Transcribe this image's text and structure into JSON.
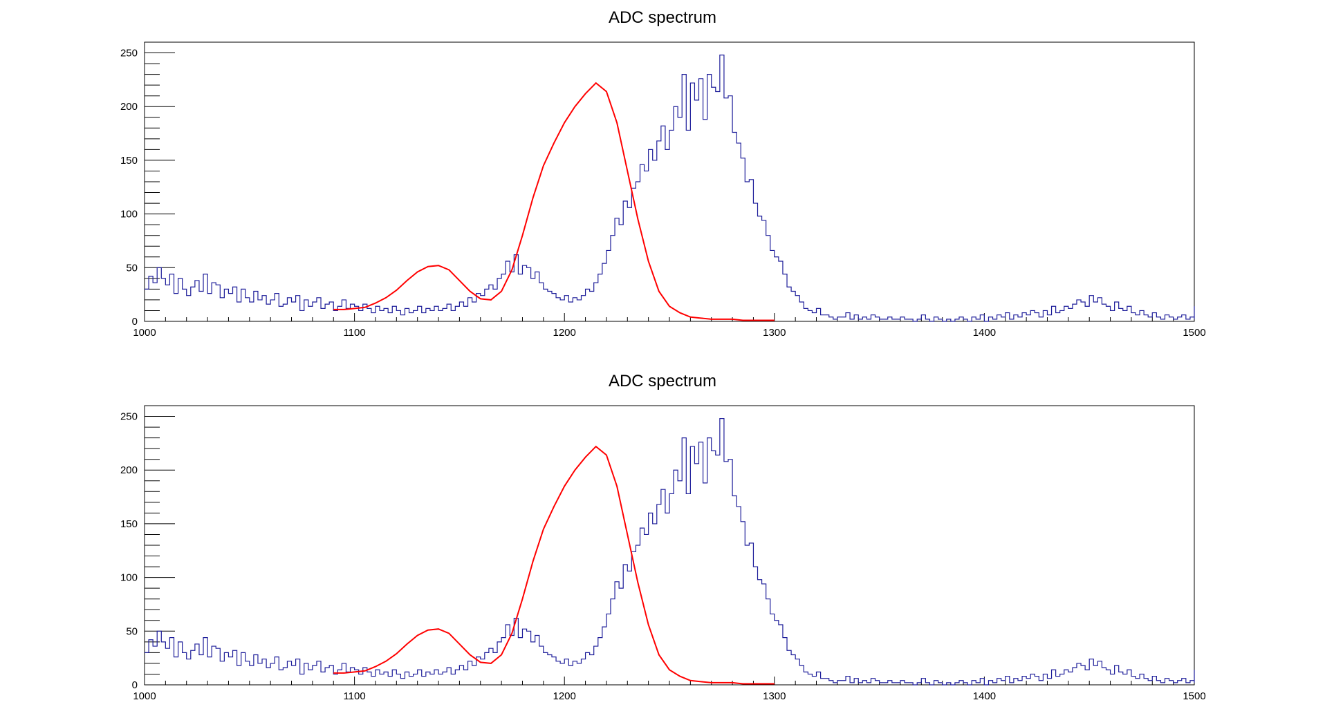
{
  "chart_data": [
    {
      "type": "histogram",
      "title": "ADC spectrum",
      "xlabel": "",
      "ylabel": "",
      "xlim": [
        1000,
        1500
      ],
      "ylim": [
        0,
        260
      ],
      "x_ticks": [
        1000,
        1100,
        1200,
        1300,
        1400,
        1500
      ],
      "y_ticks": [
        0,
        50,
        100,
        150,
        200,
        250
      ],
      "grid": false,
      "colors": {
        "histogram": "#1c1c99",
        "fit": "#ff0000",
        "frame": "#000000"
      },
      "histogram": {
        "bin_start": 1000,
        "bin_width": 2,
        "counts": [
          30,
          42,
          36,
          50,
          40,
          34,
          44,
          26,
          40,
          30,
          24,
          32,
          38,
          28,
          44,
          26,
          36,
          34,
          22,
          30,
          26,
          32,
          18,
          30,
          22,
          18,
          28,
          20,
          24,
          16,
          20,
          26,
          14,
          16,
          22,
          18,
          24,
          10,
          20,
          14,
          18,
          22,
          12,
          16,
          18,
          10,
          14,
          20,
          12,
          16,
          14,
          10,
          16,
          12,
          8,
          14,
          10,
          12,
          8,
          14,
          10,
          6,
          12,
          8,
          10,
          14,
          8,
          12,
          10,
          14,
          10,
          12,
          16,
          10,
          14,
          18,
          14,
          22,
          18,
          26,
          24,
          30,
          34,
          30,
          40,
          44,
          56,
          46,
          62,
          44,
          52,
          50,
          40,
          46,
          36,
          30,
          28,
          26,
          22,
          20,
          24,
          18,
          22,
          20,
          24,
          30,
          28,
          36,
          44,
          54,
          66,
          80,
          96,
          90,
          112,
          106,
          124,
          130,
          146,
          140,
          160,
          150,
          168,
          182,
          160,
          178,
          200,
          190,
          230,
          178,
          222,
          206,
          226,
          188,
          230,
          218,
          214,
          248,
          208,
          210,
          176,
          166,
          152,
          130,
          132,
          110,
          98,
          94,
          80,
          66,
          60,
          56,
          44,
          32,
          28,
          24,
          18,
          12,
          10,
          8,
          12,
          6,
          6,
          4,
          2,
          4,
          4,
          8,
          2,
          6,
          2,
          4,
          2,
          6,
          4,
          2,
          2,
          4,
          2,
          2,
          4,
          2,
          2,
          0,
          2,
          6,
          2,
          0,
          4,
          2,
          0,
          2,
          0,
          2,
          4,
          2,
          0,
          4,
          2,
          6,
          0,
          4,
          2,
          6,
          4,
          8,
          2,
          6,
          4,
          8,
          6,
          10,
          8,
          4,
          10,
          6,
          14,
          8,
          10,
          14,
          12,
          16,
          20,
          18,
          14,
          24,
          18,
          22,
          16,
          14,
          10,
          18,
          12,
          10,
          14,
          8,
          6,
          10,
          6,
          4,
          8,
          4,
          2,
          6,
          4,
          2,
          4,
          6,
          2,
          4,
          2,
          6,
          4,
          2,
          4,
          6,
          4,
          2,
          6,
          4,
          8,
          2,
          6,
          4,
          8,
          6,
          4,
          8,
          6,
          10,
          8,
          6,
          10,
          8,
          12,
          6,
          10,
          8,
          14,
          6,
          12,
          10,
          8,
          12,
          6,
          10,
          4,
          8,
          6,
          8,
          4,
          6,
          2,
          8
        ]
      },
      "fit": {
        "x": [
          1090,
          1095,
          1100,
          1105,
          1110,
          1115,
          1120,
          1125,
          1130,
          1135,
          1140,
          1145,
          1150,
          1155,
          1160,
          1165,
          1170,
          1175,
          1180,
          1185,
          1190,
          1195,
          1200,
          1205,
          1210,
          1215,
          1220,
          1225,
          1230,
          1235,
          1240,
          1245,
          1250,
          1255,
          1260,
          1265,
          1270,
          1275,
          1280,
          1285,
          1290,
          1295,
          1300
        ],
        "y": [
          11,
          11,
          12,
          13,
          17,
          22,
          29,
          38,
          46,
          51,
          52,
          48,
          38,
          28,
          21,
          20,
          28,
          48,
          80,
          115,
          145,
          166,
          185,
          200,
          212,
          222,
          214,
          185,
          140,
          95,
          56,
          28,
          14,
          8,
          4,
          3,
          2,
          2,
          2,
          1,
          1,
          1,
          1
        ]
      }
    },
    {
      "type": "histogram",
      "title": "ADC spectrum",
      "xlabel": "",
      "ylabel": "",
      "xlim": [
        1000,
        1500
      ],
      "ylim": [
        0,
        260
      ],
      "x_ticks": [
        1000,
        1100,
        1200,
        1300,
        1400,
        1500
      ],
      "y_ticks": [
        0,
        50,
        100,
        150,
        200,
        250
      ],
      "grid": false,
      "colors": {
        "histogram": "#1c1c99",
        "fit": "#ff0000",
        "frame": "#000000"
      },
      "histogram": {
        "bin_start": 1000,
        "bin_width": 2,
        "counts": [
          30,
          42,
          36,
          50,
          40,
          34,
          44,
          26,
          40,
          30,
          24,
          32,
          38,
          28,
          44,
          26,
          36,
          34,
          22,
          30,
          26,
          32,
          18,
          30,
          22,
          18,
          28,
          20,
          24,
          16,
          20,
          26,
          14,
          16,
          22,
          18,
          24,
          10,
          20,
          14,
          18,
          22,
          12,
          16,
          18,
          10,
          14,
          20,
          12,
          16,
          14,
          10,
          16,
          12,
          8,
          14,
          10,
          12,
          8,
          14,
          10,
          6,
          12,
          8,
          10,
          14,
          8,
          12,
          10,
          14,
          10,
          12,
          16,
          10,
          14,
          18,
          14,
          22,
          18,
          26,
          24,
          30,
          34,
          30,
          40,
          44,
          56,
          46,
          62,
          44,
          52,
          50,
          40,
          46,
          36,
          30,
          28,
          26,
          22,
          20,
          24,
          18,
          22,
          20,
          24,
          30,
          28,
          36,
          44,
          54,
          66,
          80,
          96,
          90,
          112,
          106,
          124,
          130,
          146,
          140,
          160,
          150,
          168,
          182,
          160,
          178,
          200,
          190,
          230,
          178,
          222,
          206,
          226,
          188,
          230,
          218,
          214,
          248,
          208,
          210,
          176,
          166,
          152,
          130,
          132,
          110,
          98,
          94,
          80,
          66,
          60,
          56,
          44,
          32,
          28,
          24,
          18,
          12,
          10,
          8,
          12,
          6,
          6,
          4,
          2,
          4,
          4,
          8,
          2,
          6,
          2,
          4,
          2,
          6,
          4,
          2,
          2,
          4,
          2,
          2,
          4,
          2,
          2,
          0,
          2,
          6,
          2,
          0,
          4,
          2,
          0,
          2,
          0,
          2,
          4,
          2,
          0,
          4,
          2,
          6,
          0,
          4,
          2,
          6,
          4,
          8,
          2,
          6,
          4,
          8,
          6,
          10,
          8,
          4,
          10,
          6,
          14,
          8,
          10,
          14,
          12,
          16,
          20,
          18,
          14,
          24,
          18,
          22,
          16,
          14,
          10,
          18,
          12,
          10,
          14,
          8,
          6,
          10,
          6,
          4,
          8,
          4,
          2,
          6,
          4,
          2,
          4,
          6,
          2,
          4,
          2,
          6,
          4,
          2,
          4,
          6,
          4,
          2,
          6,
          4,
          8,
          2,
          6,
          4,
          8,
          6,
          4,
          8,
          6,
          10,
          8,
          6,
          10,
          8,
          12,
          6,
          10,
          8,
          14,
          6,
          12,
          10,
          8,
          12,
          6,
          10,
          4,
          8,
          6,
          8,
          4,
          6,
          2,
          8
        ]
      },
      "fit": {
        "x": [
          1090,
          1095,
          1100,
          1105,
          1110,
          1115,
          1120,
          1125,
          1130,
          1135,
          1140,
          1145,
          1150,
          1155,
          1160,
          1165,
          1170,
          1175,
          1180,
          1185,
          1190,
          1195,
          1200,
          1205,
          1210,
          1215,
          1220,
          1225,
          1230,
          1235,
          1240,
          1245,
          1250,
          1255,
          1260,
          1265,
          1270,
          1275,
          1280,
          1285,
          1290,
          1295,
          1300
        ],
        "y": [
          11,
          11,
          12,
          13,
          17,
          22,
          29,
          38,
          46,
          51,
          52,
          48,
          38,
          28,
          21,
          20,
          28,
          48,
          80,
          115,
          145,
          166,
          185,
          200,
          212,
          222,
          214,
          185,
          140,
          95,
          56,
          28,
          14,
          8,
          4,
          3,
          2,
          2,
          2,
          1,
          1,
          1,
          1
        ]
      }
    }
  ]
}
